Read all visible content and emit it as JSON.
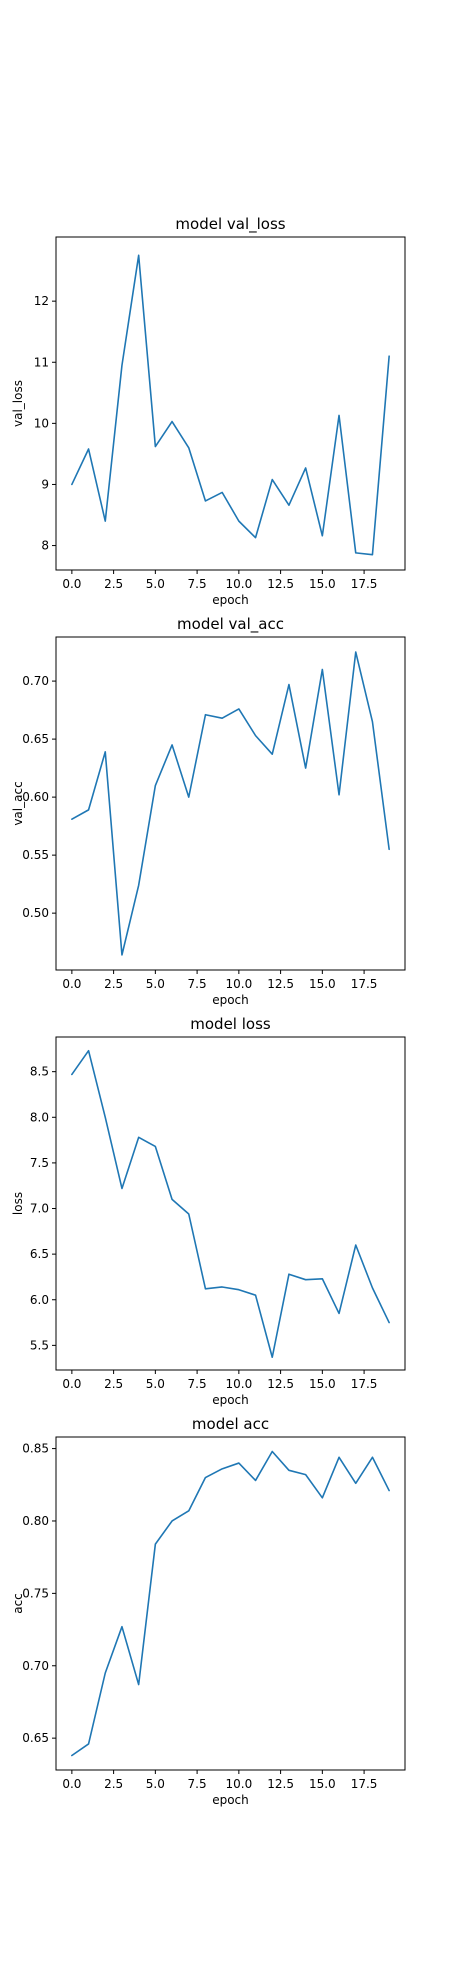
{
  "line_color": "#1f77b4",
  "chart_data": [
    {
      "type": "line",
      "title": "model val_loss",
      "xlabel": "epoch",
      "ylabel": "val_loss",
      "x": [
        0,
        1,
        2,
        3,
        4,
        5,
        6,
        7,
        8,
        9,
        10,
        11,
        12,
        13,
        14,
        15,
        16,
        17,
        18,
        19
      ],
      "series": [
        {
          "values": [
            9.0,
            9.58,
            8.4,
            10.95,
            12.75,
            9.62,
            10.03,
            9.6,
            8.73,
            8.87,
            8.4,
            8.13,
            9.08,
            8.66,
            9.27,
            8.16,
            10.13,
            7.88,
            7.85,
            11.1
          ]
        }
      ],
      "xlim": [
        -0.95,
        19.95
      ],
      "ylim": [
        7.6,
        13.05
      ],
      "xticks": [
        0,
        2.5,
        5,
        7.5,
        10,
        12.5,
        15,
        17.5
      ],
      "xtick_labels": [
        "0.0",
        "2.5",
        "5.0",
        "7.5",
        "10.0",
        "12.5",
        "15.0",
        "17.5"
      ],
      "yticks": [
        8,
        9,
        10,
        11,
        12
      ],
      "ytick_labels": [
        "8",
        "9",
        "10",
        "11",
        "12"
      ],
      "grid": false
    },
    {
      "type": "line",
      "title": "model val_acc",
      "xlabel": "epoch",
      "ylabel": "val_acc",
      "x": [
        0,
        1,
        2,
        3,
        4,
        5,
        6,
        7,
        8,
        9,
        10,
        11,
        12,
        13,
        14,
        15,
        16,
        17,
        18,
        19
      ],
      "series": [
        {
          "values": [
            0.581,
            0.589,
            0.639,
            0.464,
            0.524,
            0.61,
            0.645,
            0.6,
            0.671,
            0.668,
            0.676,
            0.653,
            0.637,
            0.697,
            0.625,
            0.71,
            0.602,
            0.725,
            0.665,
            0.555
          ]
        }
      ],
      "xlim": [
        -0.95,
        19.95
      ],
      "ylim": [
        0.451,
        0.738
      ],
      "xticks": [
        0,
        2.5,
        5,
        7.5,
        10,
        12.5,
        15,
        17.5
      ],
      "xtick_labels": [
        "0.0",
        "2.5",
        "5.0",
        "7.5",
        "10.0",
        "12.5",
        "15.0",
        "17.5"
      ],
      "yticks": [
        0.5,
        0.55,
        0.6,
        0.65,
        0.7
      ],
      "ytick_labels": [
        "0.50",
        "0.55",
        "0.60",
        "0.65",
        "0.70"
      ],
      "grid": false
    },
    {
      "type": "line",
      "title": "model loss",
      "xlabel": "epoch",
      "ylabel": "loss",
      "x": [
        0,
        1,
        2,
        3,
        4,
        5,
        6,
        7,
        8,
        9,
        10,
        11,
        12,
        13,
        14,
        15,
        16,
        17,
        18,
        19
      ],
      "series": [
        {
          "values": [
            8.47,
            8.73,
            8.0,
            7.22,
            7.78,
            7.68,
            7.1,
            6.94,
            6.12,
            6.14,
            6.11,
            6.05,
            5.37,
            6.28,
            6.22,
            6.23,
            5.85,
            6.6,
            6.13,
            5.75
          ]
        }
      ],
      "xlim": [
        -0.95,
        19.95
      ],
      "ylim": [
        5.23,
        8.88
      ],
      "xticks": [
        0,
        2.5,
        5,
        7.5,
        10,
        12.5,
        15,
        17.5
      ],
      "xtick_labels": [
        "0.0",
        "2.5",
        "5.0",
        "7.5",
        "10.0",
        "12.5",
        "15.0",
        "17.5"
      ],
      "yticks": [
        5.5,
        6.0,
        6.5,
        7.0,
        7.5,
        8.0,
        8.5
      ],
      "ytick_labels": [
        "5.5",
        "6.0",
        "6.5",
        "7.0",
        "7.5",
        "8.0",
        "8.5"
      ],
      "grid": false
    },
    {
      "type": "line",
      "title": "model acc",
      "xlabel": "epoch",
      "ylabel": "acc",
      "x": [
        0,
        1,
        2,
        3,
        4,
        5,
        6,
        7,
        8,
        9,
        10,
        11,
        12,
        13,
        14,
        15,
        16,
        17,
        18,
        19
      ],
      "series": [
        {
          "values": [
            0.638,
            0.646,
            0.695,
            0.727,
            0.687,
            0.784,
            0.8,
            0.807,
            0.83,
            0.836,
            0.84,
            0.828,
            0.848,
            0.835,
            0.832,
            0.816,
            0.844,
            0.826,
            0.844,
            0.821
          ]
        }
      ],
      "xlim": [
        -0.95,
        19.95
      ],
      "ylim": [
        0.628,
        0.858
      ],
      "xticks": [
        0,
        2.5,
        5,
        7.5,
        10,
        12.5,
        15,
        17.5
      ],
      "xtick_labels": [
        "0.0",
        "2.5",
        "5.0",
        "7.5",
        "10.0",
        "12.5",
        "15.0",
        "17.5"
      ],
      "yticks": [
        0.65,
        0.7,
        0.75,
        0.8,
        0.85
      ],
      "ytick_labels": [
        "0.65",
        "0.70",
        "0.75",
        "0.80",
        "0.85"
      ],
      "grid": false
    }
  ]
}
